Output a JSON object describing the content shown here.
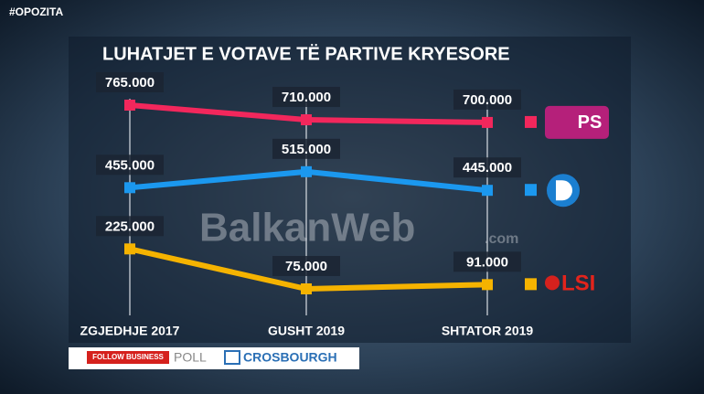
{
  "chart_data": {
    "type": "line",
    "tag": "#OPOZITA",
    "title": "LUHATJET E VOTAVE TË PARTIVE KRYESORE",
    "categories": [
      "ZGJEDHJE 2017",
      "GUSHT 2019",
      "SHTATOR 2019"
    ],
    "series": [
      {
        "name": "PS",
        "color": "#f2275c",
        "values": [
          765000,
          710000,
          700000
        ],
        "value_labels": [
          "765.000",
          "710.000",
          "700.000"
        ]
      },
      {
        "name": null,
        "color": "#1b98ef",
        "values": [
          455000,
          515000,
          445000
        ],
        "value_labels": [
          "455.000",
          "515.000",
          "445.000"
        ]
      },
      {
        "name": "LSI",
        "color": "#f5b300",
        "values": [
          225000,
          75000,
          91000
        ],
        "value_labels": [
          "225.000",
          "75.000",
          "91.000"
        ]
      }
    ]
  },
  "watermark": {
    "text": "BalkanWeb",
    "suffix": ".com"
  },
  "footer": {
    "sponsor": "FOLLOW BUSINESS",
    "label": "POLL",
    "pollster": "CROSBOURGH"
  }
}
